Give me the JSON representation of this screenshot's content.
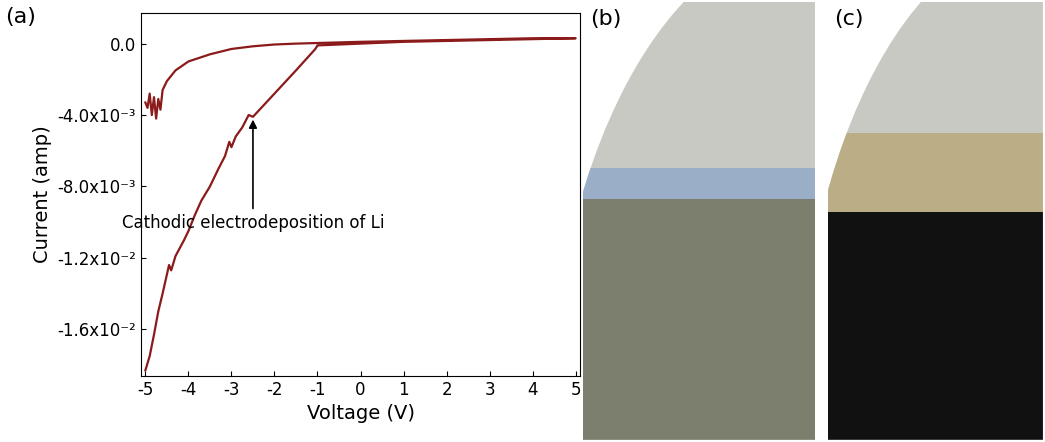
{
  "chart_data": {
    "type": "line",
    "panel_label": "(a)",
    "x_label": "Voltage (V)",
    "y_label": "Current (amp)",
    "color": "#8b1a1a",
    "line_style": "solid",
    "x": [
      -5.0,
      -4.95,
      -4.9,
      -4.85,
      -4.8,
      -4.75,
      -4.7,
      -4.65,
      -4.6,
      -4.5,
      -4.3,
      -4.0,
      -3.5,
      -3.0,
      -2.5,
      -2.0,
      -1.5,
      0.0,
      2.0,
      4.0,
      5.0,
      5.0,
      3.0,
      1.0,
      0.0,
      -1.0,
      -1.05,
      -1.5,
      -2.0,
      -2.5,
      -2.6,
      -2.75,
      -2.9,
      -3.0,
      -3.05,
      -3.15,
      -3.3,
      -3.5,
      -3.7,
      -3.85,
      -4.0,
      -4.1,
      -4.3,
      -4.4,
      -4.45,
      -4.6,
      -4.7,
      -4.8,
      -4.9,
      -5.0
    ],
    "values": [
      -0.0033,
      -0.0036,
      -0.0028,
      -0.004,
      -0.003,
      -0.0042,
      -0.0031,
      -0.0037,
      -0.0026,
      -0.0021,
      -0.0015,
      -0.001,
      -0.0006,
      -0.0003,
      -0.00015,
      -5e-05,
      0.0,
      0.0001,
      0.0002,
      0.0003,
      0.0003,
      0.0003,
      0.0002,
      0.0001,
      0.0,
      -0.0001,
      -0.0003,
      -0.0015,
      -0.0028,
      -0.0041,
      -0.004,
      -0.0047,
      -0.0052,
      -0.0058,
      -0.0055,
      -0.0063,
      -0.007,
      -0.008,
      -0.0088,
      -0.0096,
      -0.0105,
      -0.011,
      -0.0119,
      -0.0127,
      -0.0124,
      -0.014,
      -0.015,
      -0.0163,
      -0.0175,
      -0.0183
    ],
    "xlim": [
      -5.1,
      5.1
    ],
    "xticks": [
      -5,
      -4,
      -3,
      -2,
      -1,
      0,
      1,
      2,
      3,
      4,
      5
    ],
    "ylim": [
      -0.0186,
      0.0017
    ],
    "yticks": [
      {
        "value": 0.0,
        "label": "0.0"
      },
      {
        "value": -0.004,
        "label": "-4.0x10⁻³"
      },
      {
        "value": -0.008,
        "label": "-8.0x10⁻³"
      },
      {
        "value": -0.012,
        "label": "-1.2x10⁻²"
      },
      {
        "value": -0.016,
        "label": "-1.6x10⁻²"
      }
    ],
    "grid": false,
    "annotations": [
      {
        "text": "Cathodic electrodeposition of Li",
        "x": -2.5,
        "y": -0.0041
      }
    ]
  },
  "photos": [
    {
      "label": "(b)"
    },
    {
      "label": "(c)"
    }
  ]
}
